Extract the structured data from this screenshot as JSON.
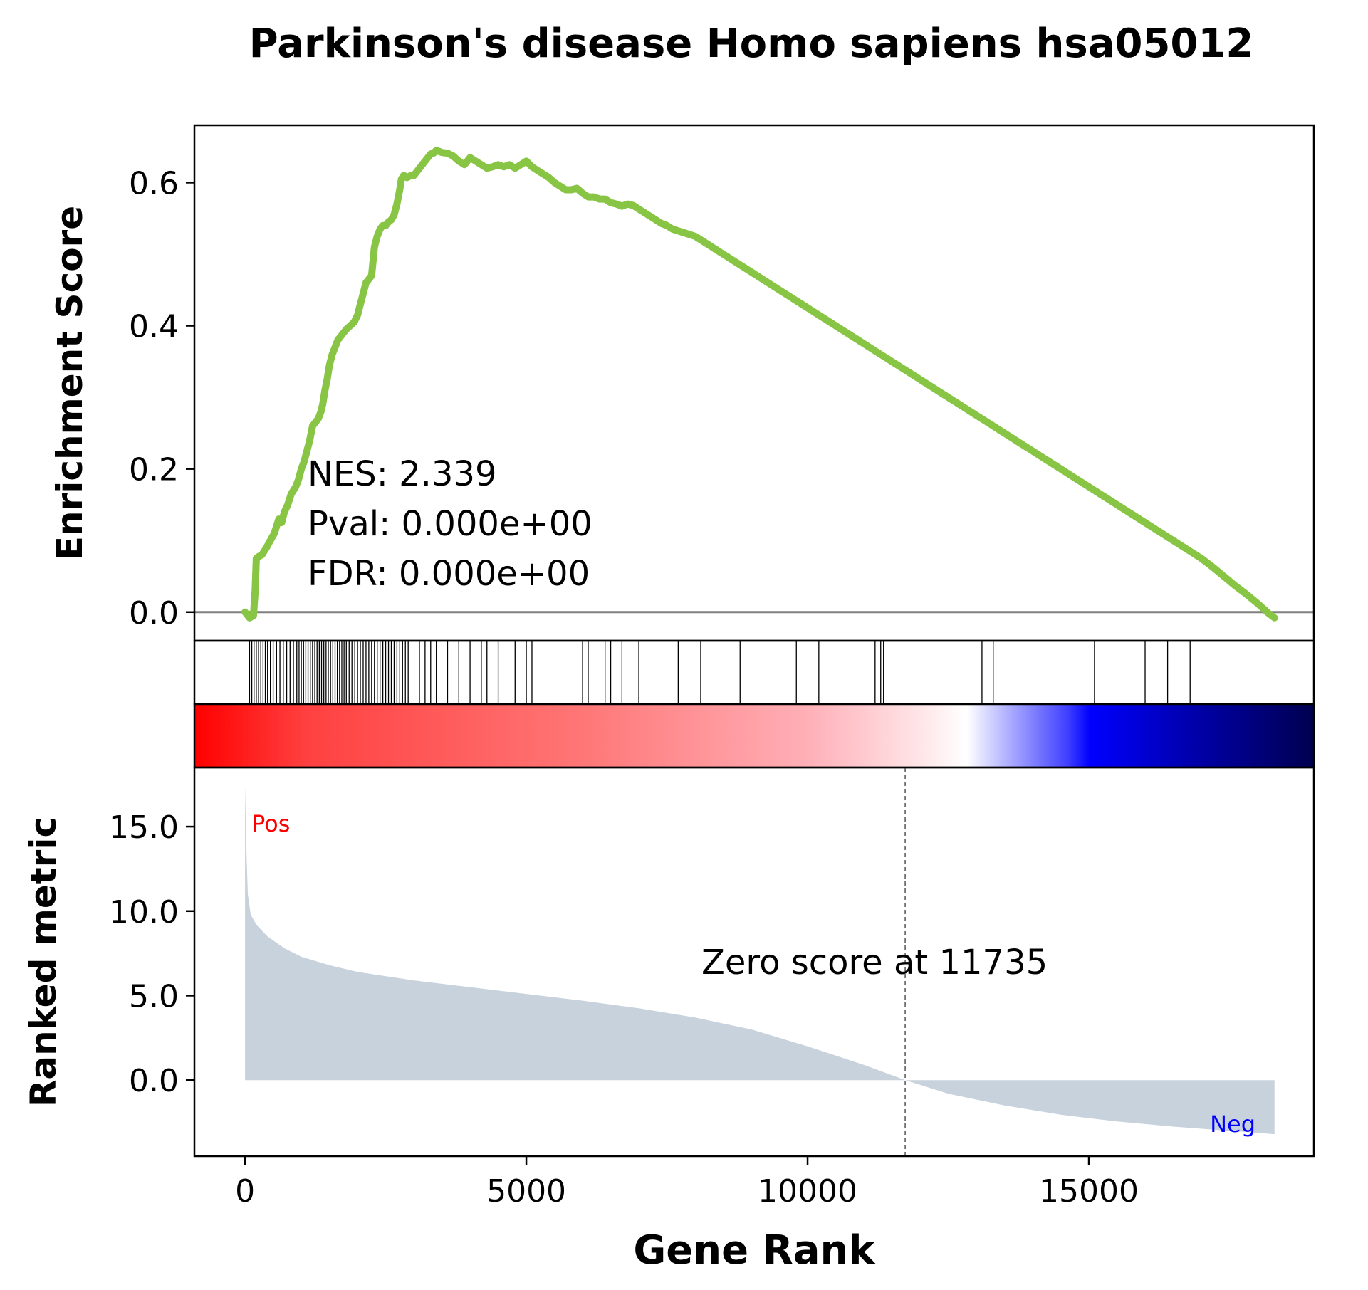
{
  "chart_data": {
    "type": "line",
    "title": "Parkinson's disease Homo sapiens hsa05012",
    "xlabel": "Gene Rank",
    "xlim": [
      -900,
      19000
    ],
    "xticks": [
      0,
      5000,
      10000,
      15000
    ],
    "xtick_labels": [
      "0",
      "5000",
      "10000",
      "15000"
    ],
    "es_panel": {
      "ylabel": "Enrichment Score",
      "ylim": [
        -0.04,
        0.68
      ],
      "yticks": [
        0.0,
        0.2,
        0.4,
        0.6
      ],
      "ytick_labels": [
        "0.0",
        "0.2",
        "0.4",
        "0.6"
      ],
      "color": "#88c544",
      "baseline": 0,
      "stats": [
        "NES: 2.339",
        "Pval: 0.000e+00",
        "FDR: 0.000e+00"
      ],
      "curve": {
        "x": [
          0,
          80,
          150,
          180,
          200,
          250,
          300,
          380,
          450,
          520,
          600,
          650,
          700,
          760,
          820,
          900,
          950,
          1000,
          1050,
          1100,
          1150,
          1200,
          1250,
          1300,
          1350,
          1380,
          1420,
          1460,
          1500,
          1550,
          1600,
          1650,
          1700,
          1750,
          1800,
          1870,
          1940,
          2000,
          2050,
          2100,
          2150,
          2200,
          2250,
          2300,
          2350,
          2400,
          2450,
          2500,
          2550,
          2600,
          2650,
          2700,
          2750,
          2780,
          2820,
          2880,
          2950,
          3000,
          3050,
          3100,
          3150,
          3200,
          3250,
          3300,
          3350,
          3400,
          3500,
          3600,
          3700,
          3800,
          3900,
          4000,
          4100,
          4200,
          4300,
          4400,
          4500,
          4600,
          4700,
          4800,
          4900,
          5000,
          5100,
          5200,
          5300,
          5400,
          5500,
          5600,
          5700,
          5800,
          5900,
          6000,
          6100,
          6200,
          6300,
          6400,
          6500,
          6600,
          6700,
          6800,
          6900,
          7000,
          7100,
          7200,
          7300,
          7400,
          7500,
          7600,
          7800,
          8000,
          8200,
          8400,
          8600,
          8800,
          9000,
          9200,
          9400,
          9600,
          9800,
          10000,
          10200,
          10400,
          10600,
          10800,
          11000,
          11200,
          11400,
          11600,
          11800,
          12000,
          12200,
          12400,
          12600,
          12800,
          13000,
          13200,
          13400,
          13600,
          13800,
          14000,
          14200,
          14400,
          14600,
          14800,
          15000,
          15200,
          15400,
          15600,
          15800,
          16000,
          16200,
          16400,
          16600,
          16800,
          17000,
          17200,
          17400,
          17600,
          17800,
          18000,
          18200,
          18300
        ],
        "y": [
          0.0,
          -0.008,
          -0.005,
          0.03,
          0.075,
          0.078,
          0.08,
          0.09,
          0.1,
          0.11,
          0.13,
          0.125,
          0.14,
          0.15,
          0.165,
          0.175,
          0.185,
          0.2,
          0.21,
          0.225,
          0.24,
          0.26,
          0.265,
          0.27,
          0.28,
          0.29,
          0.31,
          0.325,
          0.345,
          0.36,
          0.37,
          0.38,
          0.385,
          0.39,
          0.395,
          0.4,
          0.405,
          0.415,
          0.43,
          0.445,
          0.46,
          0.465,
          0.47,
          0.51,
          0.525,
          0.535,
          0.54,
          0.54,
          0.545,
          0.548,
          0.555,
          0.57,
          0.59,
          0.605,
          0.61,
          0.607,
          0.61,
          0.61,
          0.615,
          0.62,
          0.625,
          0.63,
          0.635,
          0.64,
          0.641,
          0.645,
          0.642,
          0.641,
          0.637,
          0.63,
          0.625,
          0.635,
          0.63,
          0.625,
          0.62,
          0.622,
          0.625,
          0.622,
          0.625,
          0.62,
          0.625,
          0.63,
          0.622,
          0.617,
          0.612,
          0.607,
          0.6,
          0.595,
          0.59,
          0.59,
          0.592,
          0.585,
          0.58,
          0.58,
          0.577,
          0.577,
          0.572,
          0.57,
          0.567,
          0.57,
          0.568,
          0.563,
          0.558,
          0.553,
          0.548,
          0.543,
          0.54,
          0.535,
          0.53,
          0.525,
          0.515,
          0.505,
          0.495,
          0.485,
          0.475,
          0.465,
          0.455,
          0.445,
          0.435,
          0.425,
          0.415,
          0.405,
          0.395,
          0.385,
          0.375,
          0.365,
          0.355,
          0.345,
          0.335,
          0.325,
          0.315,
          0.305,
          0.295,
          0.285,
          0.275,
          0.265,
          0.255,
          0.245,
          0.235,
          0.225,
          0.215,
          0.205,
          0.195,
          0.185,
          0.175,
          0.165,
          0.155,
          0.145,
          0.135,
          0.125,
          0.115,
          0.105,
          0.095,
          0.085,
          0.075,
          0.063,
          0.05,
          0.037,
          0.025,
          0.012,
          -0.002,
          -0.008
        ]
      }
    },
    "hits": [
      80,
      120,
      160,
      200,
      240,
      280,
      320,
      360,
      400,
      450,
      500,
      560,
      620,
      680,
      740,
      800,
      860,
      920,
      960,
      1000,
      1040,
      1080,
      1120,
      1160,
      1200,
      1240,
      1280,
      1320,
      1360,
      1400,
      1440,
      1480,
      1520,
      1560,
      1600,
      1640,
      1680,
      1720,
      1760,
      1800,
      1850,
      1900,
      1950,
      2000,
      2050,
      2100,
      2150,
      2200,
      2250,
      2300,
      2350,
      2400,
      2450,
      2500,
      2550,
      2600,
      2650,
      2700,
      2750,
      2800,
      2850,
      2900,
      3100,
      3200,
      3300,
      3400,
      3600,
      3800,
      4000,
      4200,
      4300,
      4500,
      4800,
      5000,
      5100,
      6000,
      6100,
      6400,
      6500,
      6700,
      7000,
      7700,
      8100,
      8800,
      9800,
      10200,
      11200,
      11300,
      11350,
      13100,
      13300,
      15100,
      16000,
      16400,
      16800
    ],
    "colorbar": {
      "stops": [
        {
          "pos": 0.0,
          "color": "#ff0000"
        },
        {
          "pos": 0.1,
          "color": "#ff4040"
        },
        {
          "pos": 0.35,
          "color": "#ff7777"
        },
        {
          "pos": 0.55,
          "color": "#ffb0b8"
        },
        {
          "pos": 0.65,
          "color": "#ffe6e8"
        },
        {
          "pos": 0.69,
          "color": "#ffffff"
        },
        {
          "pos": 0.73,
          "color": "#a8a8ff"
        },
        {
          "pos": 0.78,
          "color": "#4040ff"
        },
        {
          "pos": 0.8,
          "color": "#0000ff"
        },
        {
          "pos": 0.88,
          "color": "#0000b5"
        },
        {
          "pos": 1.0,
          "color": "#000050"
        }
      ]
    },
    "metric_panel": {
      "ylabel": "Ranked metric",
      "ylim": [
        -4.5,
        18.5
      ],
      "yticks": [
        0.0,
        5.0,
        10.0,
        15.0
      ],
      "ytick_labels": [
        "0.0",
        "5.0",
        "10.0",
        "15.0"
      ],
      "fill_color": "#c8d2dc",
      "zero_cross": 11735,
      "zero_label": "Zero score at 11735",
      "pos_label": "Pos",
      "neg_label": "Neg",
      "pos_color": "#ff0000",
      "neg_color": "#0000ff",
      "curve": {
        "x": [
          0,
          20,
          50,
          100,
          200,
          400,
          700,
          1000,
          1500,
          2000,
          3000,
          4000,
          5000,
          6000,
          7000,
          8000,
          9000,
          10000,
          11000,
          11735,
          12500,
          13500,
          14500,
          15500,
          16500,
          17500,
          18300
        ],
        "y": [
          17.5,
          14.0,
          11.0,
          9.8,
          9.2,
          8.5,
          7.8,
          7.3,
          6.8,
          6.4,
          5.9,
          5.5,
          5.1,
          4.7,
          4.25,
          3.7,
          3.0,
          2.0,
          0.9,
          0.0,
          -0.8,
          -1.5,
          -2.05,
          -2.45,
          -2.75,
          -3.0,
          -3.2
        ]
      }
    }
  }
}
